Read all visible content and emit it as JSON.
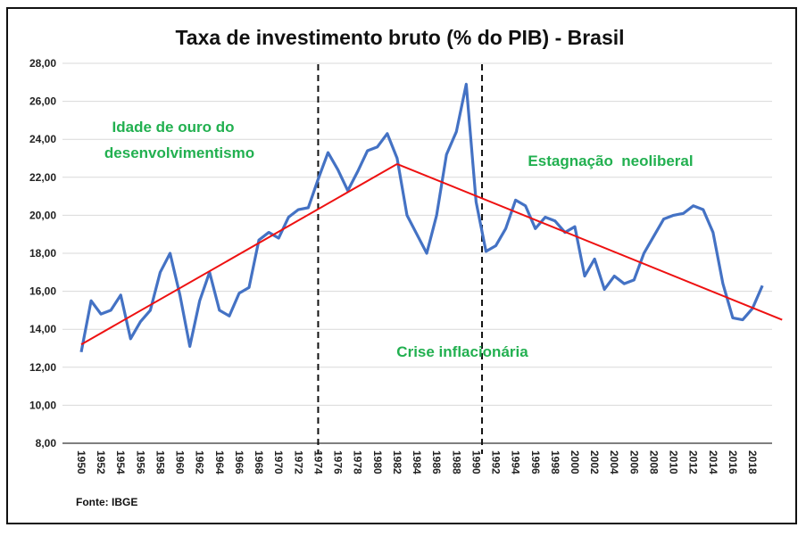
{
  "chart_data": {
    "type": "line",
    "title": "Taxa de investimento bruto (% do PIB) - Brasil",
    "xlabel": "",
    "ylabel": "",
    "ylim": [
      8,
      28
    ],
    "yticks": [
      "8,00",
      "10,00",
      "12,00",
      "14,00",
      "16,00",
      "18,00",
      "20,00",
      "22,00",
      "24,00",
      "26,00",
      "28,00"
    ],
    "xticks": [
      "1950",
      "1952",
      "1954",
      "1956",
      "1958",
      "1960",
      "1962",
      "1964",
      "1966",
      "1968",
      "1970",
      "1972",
      "1974",
      "1976",
      "1978",
      "1980",
      "1982",
      "1984",
      "1986",
      "1988",
      "1990",
      "1992",
      "1994",
      "1996",
      "1998",
      "2000",
      "2002",
      "2004",
      "2006",
      "2008",
      "2010",
      "2012",
      "2014",
      "2016",
      "2018"
    ],
    "grid": true,
    "series": [
      {
        "color": "#4472c4",
        "x": [
          1950,
          1951,
          1952,
          1953,
          1954,
          1955,
          1956,
          1957,
          1958,
          1959,
          1960,
          1961,
          1962,
          1963,
          1964,
          1965,
          1966,
          1967,
          1968,
          1969,
          1970,
          1971,
          1972,
          1973,
          1974,
          1975,
          1976,
          1977,
          1978,
          1979,
          1980,
          1981,
          1982,
          1983,
          1984,
          1985,
          1986,
          1987,
          1988,
          1989,
          1990,
          1991,
          1992,
          1993,
          1994,
          1995,
          1996,
          1997,
          1998,
          1999,
          2000,
          2001,
          2002,
          2003,
          2004,
          2005,
          2006,
          2007,
          2008,
          2009,
          2010,
          2011,
          2012,
          2013,
          2014,
          2015,
          2016,
          2017,
          2018,
          2019
        ],
        "y": [
          12.8,
          15.5,
          14.8,
          15.0,
          15.8,
          13.5,
          14.4,
          15.0,
          17.0,
          18.0,
          15.8,
          13.1,
          15.5,
          17.0,
          15.0,
          14.7,
          15.9,
          16.2,
          18.7,
          19.1,
          18.8,
          19.9,
          20.3,
          20.4,
          21.9,
          23.3,
          22.4,
          21.3,
          22.3,
          23.4,
          23.6,
          24.3,
          23.0,
          20.0,
          19.0,
          18.0,
          20.0,
          23.2,
          24.4,
          26.9,
          20.7,
          18.1,
          18.4,
          19.3,
          20.8,
          20.5,
          19.3,
          19.9,
          19.7,
          19.1,
          19.4,
          16.8,
          17.7,
          16.1,
          16.8,
          16.4,
          16.6,
          18.0,
          18.9,
          19.8,
          20.0,
          20.1,
          20.5,
          20.3,
          19.1,
          16.4,
          14.6,
          14.5,
          15.1,
          16.3
        ]
      }
    ],
    "trendlines": [
      {
        "color": "#ee1111",
        "x": [
          1950,
          1982
        ],
        "y": [
          13.2,
          22.7
        ]
      },
      {
        "color": "#ee1111",
        "x": [
          1982,
          2021
        ],
        "y": [
          22.7,
          14.5
        ]
      }
    ],
    "dividers": [
      1974,
      1990.6
    ],
    "annotations": {
      "golden_age_line1": "Idade de ouro do",
      "golden_age_line2": "desenvolvimentismo",
      "crisis": "Crise inflacionária",
      "stagnation": "Estagnação  neoliberal"
    },
    "source": "Fonte: IBGE"
  }
}
